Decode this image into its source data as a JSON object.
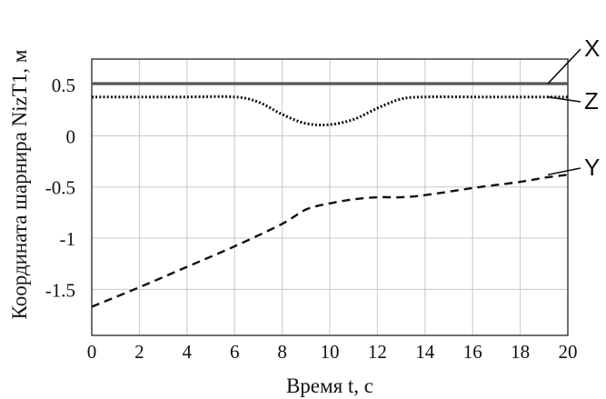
{
  "chart_data": {
    "type": "line",
    "title": "",
    "xlabel": "Время t, с",
    "ylabel": "Координата шарнира NizT1, м",
    "xlim": [
      0,
      20
    ],
    "ylim": [
      -1.95,
      0.75
    ],
    "grid": true,
    "xticks": [
      0,
      2,
      4,
      6,
      8,
      10,
      12,
      14,
      16,
      18,
      20
    ],
    "xtick_labels": [
      "0",
      "2",
      "4",
      "6",
      "8",
      "10",
      "12",
      "14",
      "16",
      "18",
      "20"
    ],
    "yticks": [
      0.5,
      0,
      -0.5,
      -1,
      -1.5
    ],
    "ytick_labels": [
      "0.5",
      "0",
      "-0.5",
      "-1",
      "-1.5"
    ],
    "series": [
      {
        "name": "X",
        "style": "solid",
        "x": [
          0,
          20
        ],
        "y": [
          0.51,
          0.51
        ]
      },
      {
        "name": "Z",
        "style": "dotted",
        "x": [
          0,
          2,
          4,
          6,
          7,
          8,
          9,
          10,
          11,
          12,
          13,
          14,
          16,
          18,
          20
        ],
        "y": [
          0.38,
          0.38,
          0.38,
          0.38,
          0.33,
          0.21,
          0.12,
          0.11,
          0.16,
          0.27,
          0.36,
          0.38,
          0.38,
          0.38,
          0.38
        ]
      },
      {
        "name": "Y",
        "style": "dashed",
        "x": [
          0,
          2,
          4,
          6,
          8,
          9,
          10,
          11,
          12,
          13,
          14,
          16,
          18,
          19,
          20
        ],
        "y": [
          -1.67,
          -1.48,
          -1.28,
          -1.08,
          -0.86,
          -0.72,
          -0.66,
          -0.62,
          -0.6,
          -0.6,
          -0.58,
          -0.51,
          -0.45,
          -0.41,
          -0.38
        ]
      }
    ],
    "colors": {
      "line": "#111111",
      "grid": "#c8c8c8",
      "x_series": "#555555"
    }
  }
}
